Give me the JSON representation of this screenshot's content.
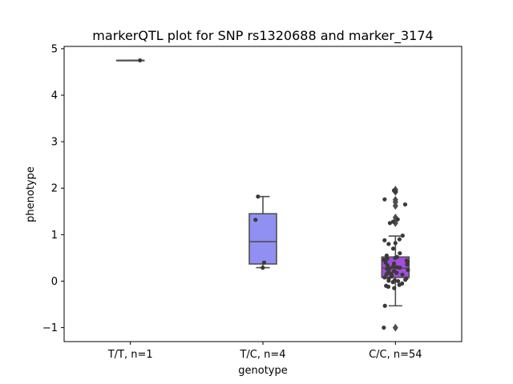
{
  "chart_data": {
    "type": "box",
    "title": "markerQTL plot for SNP rs1320688 and marker_3174",
    "xlabel": "genotype",
    "ylabel": "phenotype",
    "ylim": [
      -1.3,
      5.05
    ],
    "yticks": [
      -1,
      0,
      1,
      2,
      3,
      4,
      5
    ],
    "ytick_labels": [
      "−1",
      "0",
      "1",
      "2",
      "3",
      "4",
      "5"
    ],
    "categories": [
      "T/T, n=1",
      "T/C, n=4",
      "C/C, n=54"
    ],
    "grid": false,
    "legend": "none",
    "colors": {
      "box_fills": [
        "#9a9af5",
        "#9090f2",
        "#a64ce0"
      ],
      "box_edge": "#4f4f4f",
      "points": "#3a3a3a"
    },
    "boxes": [
      {
        "category": "T/T, n=1",
        "q1": 4.75,
        "median": 4.75,
        "q3": 4.75,
        "whisker_low": 4.75,
        "whisker_high": 4.75,
        "outliers": []
      },
      {
        "category": "T/C, n=4",
        "q1": 0.37,
        "median": 0.85,
        "q3": 1.45,
        "whisker_low": 0.29,
        "whisker_high": 1.82,
        "outliers": []
      },
      {
        "category": "C/C, n=54",
        "q1": 0.08,
        "median": 0.28,
        "q3": 0.52,
        "whisker_low": -0.53,
        "whisker_high": 0.97,
        "outliers": [
          1.97,
          1.92,
          1.75,
          1.7,
          1.62,
          1.37,
          1.3,
          1.25,
          -1.0
        ]
      }
    ],
    "points": [
      {
        "category": "T/T, n=1",
        "values": [
          4.75
        ]
      },
      {
        "category": "T/C, n=4",
        "values": [
          0.29,
          0.4,
          1.32,
          1.82
        ]
      },
      {
        "category": "C/C, n=54",
        "values": [
          1.95,
          1.93,
          1.76,
          1.65,
          1.33,
          1.28,
          1.25,
          0.98,
          0.9,
          0.88,
          0.82,
          0.8,
          0.6,
          0.55,
          0.52,
          0.5,
          0.48,
          0.46,
          0.44,
          0.42,
          0.4,
          0.38,
          0.36,
          0.34,
          0.32,
          0.3,
          0.29,
          0.28,
          0.26,
          0.24,
          0.22,
          0.2,
          0.18,
          0.16,
          0.15,
          0.14,
          0.12,
          0.1,
          0.08,
          0.06,
          0.05,
          0.03,
          0.02,
          0.01,
          0.0,
          -0.02,
          -0.05,
          -0.08,
          -0.1,
          -0.12,
          -0.15,
          -0.53,
          -1.0,
          0.7
        ]
      }
    ]
  }
}
